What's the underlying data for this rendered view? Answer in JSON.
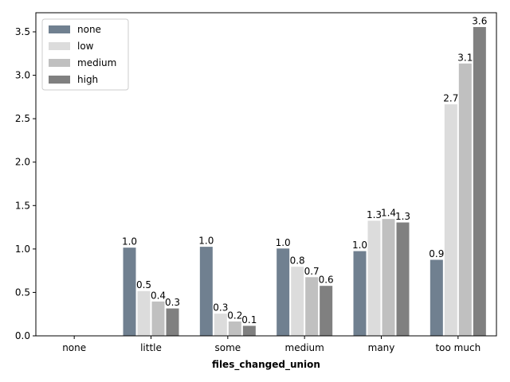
{
  "chart_data": {
    "type": "bar",
    "title": "",
    "xlabel": "files_changed_union",
    "ylabel": "",
    "categories": [
      "none",
      "little",
      "some",
      "medium",
      "many",
      "too much"
    ],
    "ylim": [
      0,
      3.72
    ],
    "yticks": [
      0.0,
      0.5,
      1.0,
      1.5,
      2.0,
      2.5,
      3.0,
      3.5
    ],
    "ytick_labels": [
      "0.0",
      "0.5",
      "1.0",
      "1.5",
      "2.0",
      "2.5",
      "3.0",
      "3.5"
    ],
    "grid": false,
    "legend_position": "top-left",
    "series": [
      {
        "name": "none",
        "color": "#708090",
        "values": [
          null,
          1.02,
          1.03,
          1.01,
          0.98,
          0.88
        ],
        "labels": [
          "",
          "1.0",
          "1.0",
          "1.0",
          "1.0",
          "0.9"
        ]
      },
      {
        "name": "low",
        "color": "#dcdcdc",
        "values": [
          null,
          0.52,
          0.26,
          0.8,
          1.33,
          2.67
        ],
        "labels": [
          "",
          "0.5",
          "0.3",
          "0.8",
          "1.3",
          "2.7"
        ]
      },
      {
        "name": "medium",
        "color": "#c0c0c0",
        "values": [
          null,
          0.4,
          0.17,
          0.68,
          1.35,
          3.14
        ],
        "labels": [
          "",
          "0.4",
          "0.2",
          "0.7",
          "1.4",
          "3.1"
        ]
      },
      {
        "name": "high",
        "color": "#808080",
        "values": [
          null,
          0.32,
          0.12,
          0.58,
          1.31,
          3.56
        ],
        "labels": [
          "",
          "0.3",
          "0.1",
          "0.6",
          "1.3",
          "3.6"
        ]
      }
    ]
  }
}
